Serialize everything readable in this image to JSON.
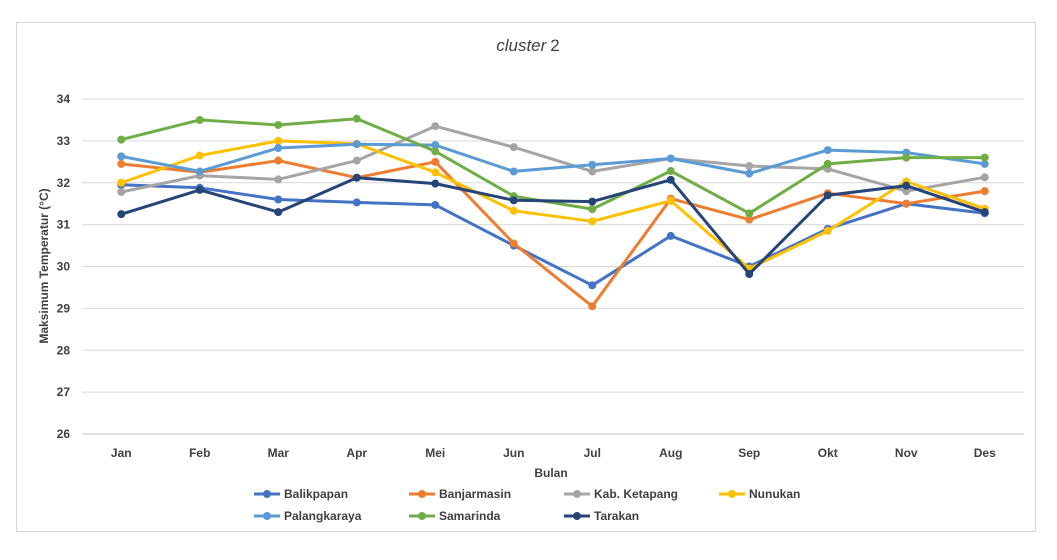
{
  "chart_data": {
    "type": "line",
    "title_italic": "cluster",
    "title_number": "2",
    "xlabel": "Bulan",
    "ylabel": "Maksimum Temperatur (°C)",
    "ylim": [
      26,
      34
    ],
    "yticks": [
      "26",
      "27",
      "28",
      "29",
      "30",
      "31",
      "32",
      "33",
      "34"
    ],
    "categories": [
      "Jan",
      "Feb",
      "Mar",
      "Apr",
      "Mei",
      "Jun",
      "Jul",
      "Aug",
      "Sep",
      "Okt",
      "Nov",
      "Des"
    ],
    "legend_position": "bottom",
    "series": [
      {
        "name": "Balikpapan",
        "color": "#4472c4",
        "values": [
          31.95,
          31.88,
          31.6,
          31.53,
          31.47,
          30.5,
          29.55,
          30.73,
          30.0,
          30.9,
          31.5,
          31.27
        ]
      },
      {
        "name": "Banjarmasin",
        "color": "#ed7d31",
        "values": [
          32.45,
          32.25,
          32.53,
          32.12,
          32.5,
          30.55,
          29.05,
          31.62,
          31.12,
          31.75,
          31.5,
          31.8
        ]
      },
      {
        "name": "Kab. Ketapang",
        "color": "#a5a5a5",
        "values": [
          31.78,
          32.17,
          32.08,
          32.53,
          33.35,
          32.85,
          32.27,
          32.58,
          32.4,
          32.33,
          31.8,
          32.13
        ]
      },
      {
        "name": "Nunukan",
        "color": "#ffc000",
        "values": [
          32.0,
          32.65,
          33.0,
          32.93,
          32.25,
          31.33,
          31.08,
          31.57,
          29.95,
          30.85,
          32.03,
          31.38
        ]
      },
      {
        "name": "Palangkaraya",
        "color": "#5b9bd5",
        "values": [
          32.63,
          32.27,
          32.83,
          32.92,
          32.9,
          32.27,
          32.43,
          32.58,
          32.22,
          32.78,
          32.72,
          32.45
        ]
      },
      {
        "name": "Samarinda",
        "color": "#70ad47",
        "values": [
          33.03,
          33.5,
          33.38,
          33.53,
          32.75,
          31.68,
          31.37,
          32.28,
          31.27,
          32.45,
          32.6,
          32.6
        ]
      },
      {
        "name": "Tarakan",
        "color": "#264478",
        "values": [
          31.25,
          31.83,
          31.3,
          32.12,
          31.98,
          31.58,
          31.55,
          32.07,
          29.82,
          31.7,
          31.93,
          31.3
        ]
      }
    ]
  }
}
